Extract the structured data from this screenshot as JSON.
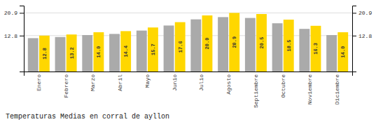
{
  "chart_data": {
    "type": "bar",
    "title": "Temperaturas Medias en corral de ayllon",
    "categories": [
      "Enero",
      "Febrero",
      "Marzo",
      "Abril",
      "Mayo",
      "Junio",
      "Julio",
      "Agosto",
      "Septiembre",
      "Octubre",
      "Noviembre",
      "Diciembre"
    ],
    "series": [
      {
        "color": "#AAAAAA",
        "values": [
          11.9,
          12.3,
          13.0,
          13.4,
          14.6,
          16.4,
          18.6,
          19.4,
          19.1,
          17.2,
          15.2,
          13.0
        ]
      },
      {
        "color": "#FFD700",
        "values": [
          12.8,
          13.2,
          14.0,
          14.4,
          15.7,
          17.6,
          20.0,
          20.9,
          20.5,
          18.5,
          16.3,
          14.0
        ],
        "data_labels": true,
        "value_labels": [
          "12.8",
          "13.2",
          "14.0",
          "14.4",
          "15.7",
          "17.6",
          "20.0",
          "20.9",
          "20.5",
          "18.5",
          "16.3",
          "14.0"
        ]
      }
    ],
    "ylim": [
      0,
      23.5
    ],
    "yticks": [
      12.8,
      20.9
    ],
    "y2lim": [
      0,
      23.5
    ],
    "y2ticks": [
      12.8,
      20.9
    ],
    "grid": true
  }
}
